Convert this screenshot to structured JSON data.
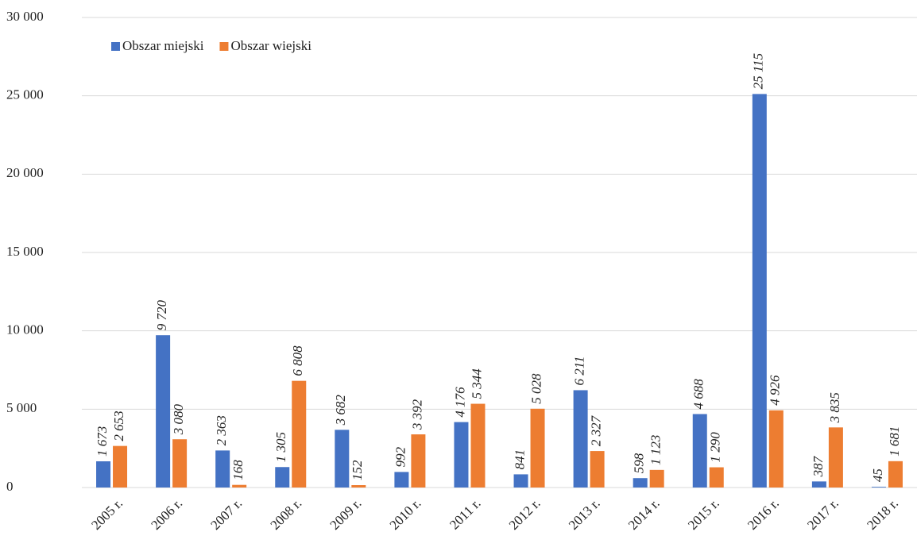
{
  "chart_data": {
    "type": "bar",
    "categories": [
      "2005 r.",
      "2006 r.",
      "2007 r.",
      "2008 r.",
      "2009 r.",
      "2010 r.",
      "2011 r.",
      "2012 r.",
      "2013 r.",
      "2014 r.",
      "2015 r.",
      "2016 r.",
      "2017 r.",
      "2018 r."
    ],
    "series": [
      {
        "name": "Obszar miejski",
        "color": "#4472c4",
        "values": [
          1673,
          9720,
          2363,
          1305,
          3682,
          992,
          4176,
          841,
          6211,
          598,
          4688,
          25115,
          387,
          45
        ],
        "value_labels": [
          "1 673",
          "9 720",
          "2 363",
          "1 305",
          "3 682",
          "992",
          "4 176",
          "841",
          "6 211",
          "598",
          "4 688",
          "25 115",
          "387",
          "45"
        ]
      },
      {
        "name": "Obszar wiejski",
        "color": "#ed7d31",
        "values": [
          2653,
          3080,
          168,
          6808,
          152,
          3392,
          5344,
          5028,
          2327,
          1123,
          1290,
          4926,
          3835,
          1681
        ],
        "value_labels": [
          "2 653",
          "3 080",
          "168",
          "6 808",
          "152",
          "3 392",
          "5 344",
          "5 028",
          "2 327",
          "1 123",
          "1 290",
          "4 926",
          "3 835",
          "1 681"
        ]
      }
    ],
    "ylim": [
      0,
      30000
    ],
    "yticks": [
      0,
      {
        "value": 5000,
        "label": "5 000"
      },
      {
        "value": 10000,
        "label": "10 000"
      },
      {
        "value": 15000,
        "label": "15 000"
      },
      {
        "value": 20000,
        "label": "20 000"
      },
      {
        "value": 25000,
        "label": "25 000"
      },
      {
        "value": 30000,
        "label": "30 000"
      }
    ],
    "grid": true,
    "legend": "top-left"
  }
}
